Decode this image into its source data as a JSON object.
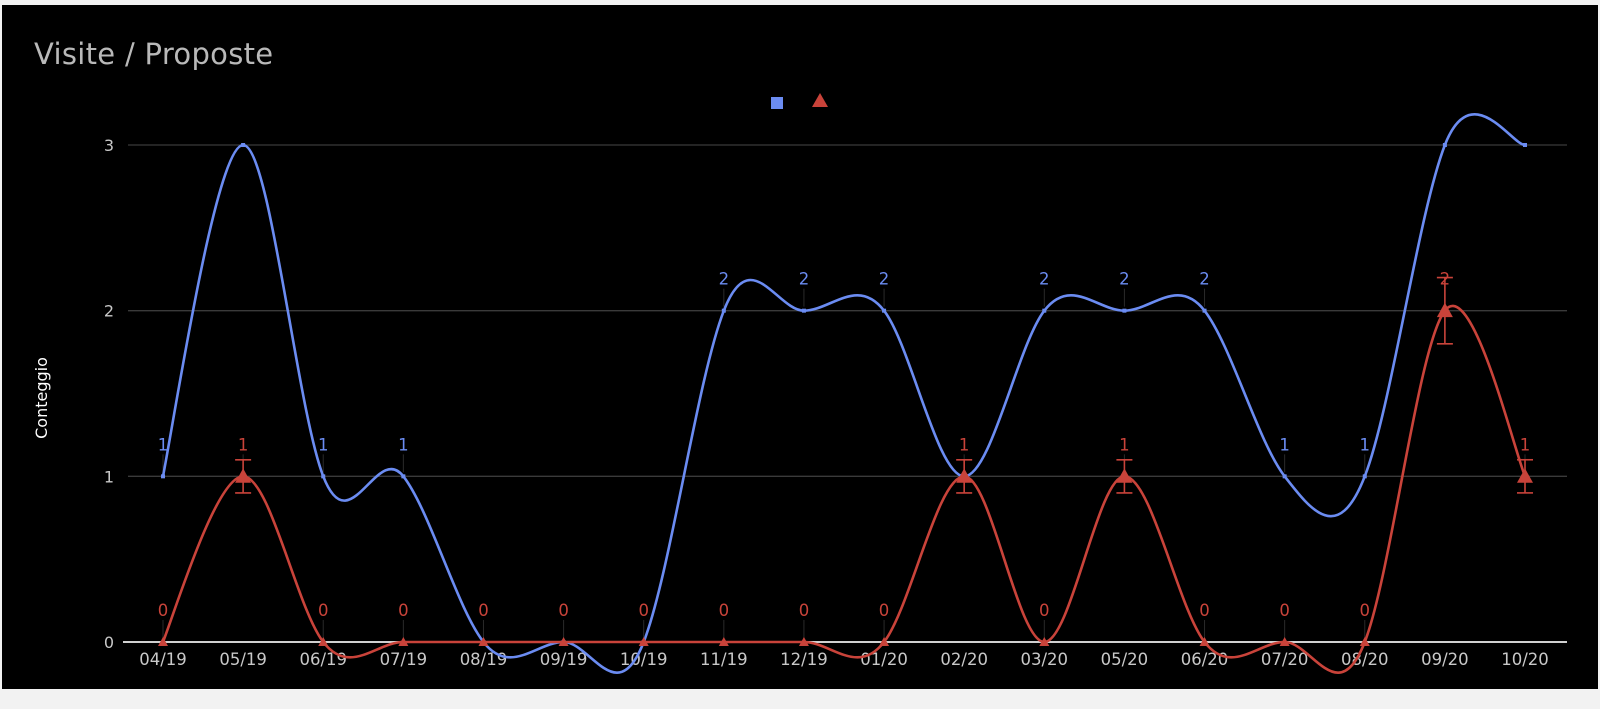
{
  "title": "Visite / Proposte",
  "chart_data": {
    "type": "line",
    "smooth": true,
    "title": "Visite / Proposte",
    "xlabel": "",
    "ylabel": "Conteggio",
    "ylim": [
      0,
      3
    ],
    "yticks": [
      0,
      1,
      2,
      3
    ],
    "grid": true,
    "legend": "top-center",
    "categories": [
      "04/19",
      "05/19",
      "06/19",
      "07/19",
      "08/19",
      "09/19",
      "10/19",
      "11/19",
      "12/19",
      "01/20",
      "02/20",
      "03/20",
      "05/20",
      "06/20",
      "07/20",
      "08/20",
      "09/20",
      "10/20"
    ],
    "series": [
      {
        "color": "#6b8cf2",
        "marker": "square",
        "values": [
          1,
          3,
          1,
          1,
          0,
          0,
          0,
          2,
          2,
          2,
          1,
          2,
          2,
          2,
          1,
          1,
          3,
          3
        ],
        "data_labels": [
          "1",
          "",
          "1",
          "1",
          "",
          "",
          "",
          "2",
          "2",
          "2",
          "",
          "2",
          "2",
          "2",
          "1",
          "1",
          "",
          ""
        ]
      },
      {
        "color": "#c9433a",
        "marker": "triangle",
        "values": [
          0,
          1,
          0,
          0,
          0,
          0,
          0,
          0,
          0,
          0,
          1,
          0,
          1,
          0,
          0,
          0,
          2,
          1
        ],
        "error": [
          0,
          0.1,
          0,
          0,
          0,
          0,
          0,
          0,
          0,
          0,
          0.1,
          0,
          0.1,
          0,
          0,
          0,
          0.2,
          0.1
        ],
        "data_labels": [
          "0",
          "1",
          "0",
          "0",
          "0",
          "0",
          "0",
          "0",
          "0",
          "0",
          "1",
          "0",
          "1",
          "0",
          "0",
          "0",
          "2",
          "1"
        ]
      }
    ]
  }
}
